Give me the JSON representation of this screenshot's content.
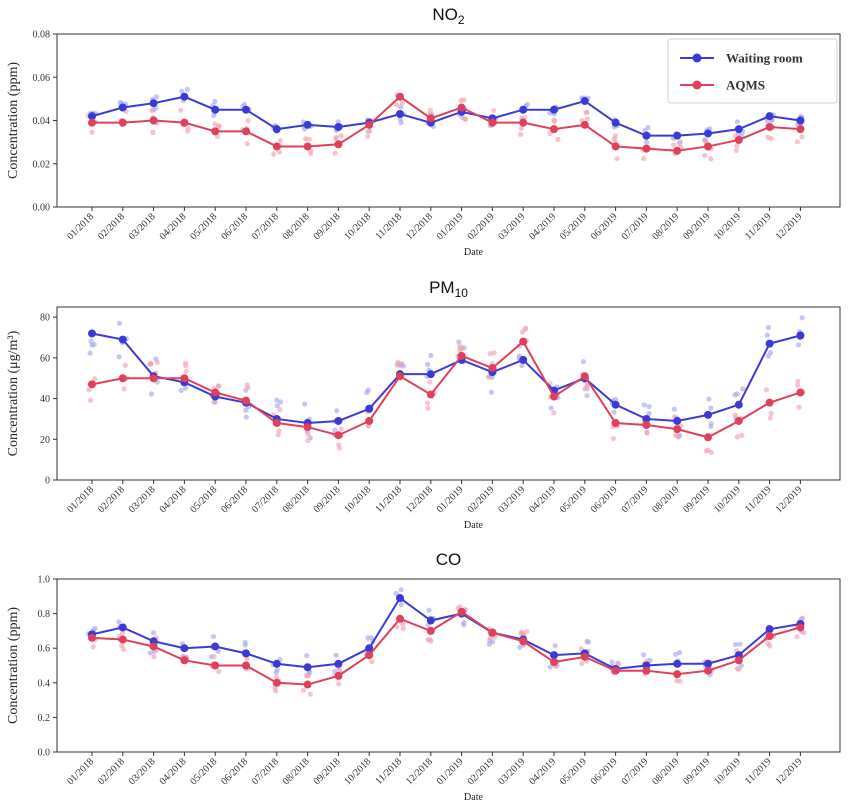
{
  "chart_data": [
    {
      "type": "line",
      "title": "NO₂",
      "title_main": "NO",
      "title_sub": "2",
      "xlabel": "Date",
      "ylabel": "Concentration (ppm)",
      "ylim": [
        0,
        0.08
      ],
      "yticks": [
        "0.00",
        "0.02",
        "0.04",
        "0.06",
        "0.08"
      ],
      "categories": [
        "01/2018",
        "02/2018",
        "03/2018",
        "04/2018",
        "05/2018",
        "06/2018",
        "07/2018",
        "08/2018",
        "09/2018",
        "10/2018",
        "11/2018",
        "12/2018",
        "01/2019",
        "02/2019",
        "03/2019",
        "04/2019",
        "05/2019",
        "06/2019",
        "07/2019",
        "08/2019",
        "09/2019",
        "10/2019",
        "11/2019",
        "12/2019"
      ],
      "legend_position": "top-right",
      "series": [
        {
          "name": "Waiting room",
          "color": "#3a3ad6",
          "scatter_color": "#a8a8ee",
          "values": [
            0.042,
            0.046,
            0.048,
            0.051,
            0.045,
            0.045,
            0.036,
            0.038,
            0.037,
            0.039,
            0.043,
            0.039,
            0.044,
            0.041,
            0.045,
            0.045,
            0.049,
            0.039,
            0.033,
            0.033,
            0.034,
            0.036,
            0.042,
            0.04
          ],
          "scatter_spread": 0.004
        },
        {
          "name": "AQMS",
          "color": "#e0405a",
          "scatter_color": "#f2a3b2",
          "values": [
            0.039,
            0.039,
            0.04,
            0.039,
            0.035,
            0.035,
            0.028,
            0.028,
            0.029,
            0.038,
            0.051,
            0.041,
            0.046,
            0.039,
            0.039,
            0.036,
            0.038,
            0.028,
            0.027,
            0.026,
            0.028,
            0.031,
            0.037,
            0.036
          ],
          "scatter_spread": 0.006
        }
      ]
    },
    {
      "type": "line",
      "title": "PM₁₀",
      "title_main": "PM",
      "title_sub": "10",
      "xlabel": "Date",
      "ylabel": "Concentration (μg/m³)",
      "ylim": [
        0,
        85
      ],
      "yticks": [
        "0",
        "20",
        "40",
        "60",
        "80"
      ],
      "categories": [
        "01/2018",
        "02/2018",
        "03/2018",
        "04/2018",
        "05/2018",
        "06/2018",
        "07/2018",
        "08/2018",
        "09/2018",
        "10/2018",
        "11/2018",
        "12/2018",
        "01/2019",
        "02/2019",
        "03/2019",
        "04/2019",
        "05/2019",
        "06/2019",
        "07/2019",
        "08/2019",
        "09/2019",
        "10/2019",
        "11/2019",
        "12/2019"
      ],
      "series": [
        {
          "name": "Waiting room",
          "color": "#3a3ad6",
          "scatter_color": "#a8a8ee",
          "values": [
            72,
            69,
            51,
            48,
            41,
            38,
            30,
            28,
            29,
            35,
            52,
            52,
            59,
            53,
            59,
            44,
            50,
            37,
            30,
            29,
            32,
            37,
            67,
            71
          ],
          "scatter_spread": 10
        },
        {
          "name": "AQMS",
          "color": "#e0405a",
          "scatter_color": "#f2a3b2",
          "values": [
            47,
            50,
            50,
            50,
            43,
            39,
            28,
            26,
            22,
            29,
            51,
            42,
            61,
            55,
            68,
            41,
            51,
            28,
            27,
            25,
            21,
            29,
            38,
            43
          ],
          "scatter_spread": 8
        }
      ]
    },
    {
      "type": "line",
      "title": "CO",
      "title_main": "CO",
      "title_sub": "",
      "xlabel": "Date",
      "ylabel": "Concentration (ppm)",
      "ylim": [
        0,
        1.0
      ],
      "yticks": [
        "0.0",
        "0.2",
        "0.4",
        "0.6",
        "0.8",
        "1.0"
      ],
      "categories": [
        "01/2018",
        "02/2018",
        "03/2018",
        "04/2018",
        "05/2018",
        "06/2018",
        "07/2018",
        "08/2018",
        "09/2018",
        "10/2018",
        "11/2018",
        "12/2018",
        "01/2019",
        "02/2019",
        "03/2019",
        "04/2019",
        "05/2019",
        "06/2019",
        "07/2019",
        "08/2019",
        "09/2019",
        "10/2019",
        "11/2019",
        "12/2019"
      ],
      "series": [
        {
          "name": "Waiting room",
          "color": "#3a3ad6",
          "scatter_color": "#a8a8ee",
          "values": [
            0.68,
            0.72,
            0.64,
            0.6,
            0.61,
            0.57,
            0.51,
            0.49,
            0.51,
            0.6,
            0.89,
            0.76,
            0.8,
            0.69,
            0.65,
            0.56,
            0.57,
            0.48,
            0.5,
            0.51,
            0.51,
            0.56,
            0.71,
            0.74
          ],
          "scatter_spread": 0.07
        },
        {
          "name": "AQMS",
          "color": "#e0405a",
          "scatter_color": "#f2a3b2",
          "values": [
            0.66,
            0.65,
            0.61,
            0.53,
            0.5,
            0.5,
            0.4,
            0.39,
            0.44,
            0.56,
            0.77,
            0.7,
            0.81,
            0.69,
            0.64,
            0.52,
            0.55,
            0.47,
            0.47,
            0.45,
            0.47,
            0.53,
            0.67,
            0.72
          ],
          "scatter_spread": 0.06
        }
      ]
    }
  ]
}
